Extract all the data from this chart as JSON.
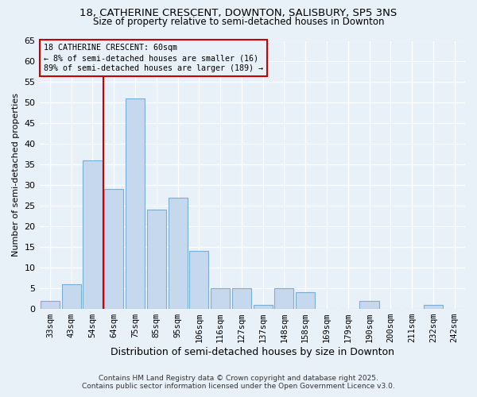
{
  "title1": "18, CATHERINE CRESCENT, DOWNTON, SALISBURY, SP5 3NS",
  "title2": "Size of property relative to semi-detached houses in Downton",
  "xlabel": "Distribution of semi-detached houses by size in Downton",
  "ylabel": "Number of semi-detached properties",
  "footer1": "Contains HM Land Registry data © Crown copyright and database right 2025.",
  "footer2": "Contains public sector information licensed under the Open Government Licence v3.0.",
  "categories": [
    "33sqm",
    "43sqm",
    "54sqm",
    "64sqm",
    "75sqm",
    "85sqm",
    "95sqm",
    "106sqm",
    "116sqm",
    "127sqm",
    "137sqm",
    "148sqm",
    "158sqm",
    "169sqm",
    "179sqm",
    "190sqm",
    "200sqm",
    "211sqm",
    "232sqm",
    "242sqm"
  ],
  "values": [
    2,
    6,
    36,
    29,
    51,
    24,
    27,
    14,
    5,
    5,
    1,
    5,
    4,
    0,
    0,
    2,
    0,
    0,
    1,
    0
  ],
  "bar_color": "#c5d8ed",
  "bar_edge_color": "#7aaed4",
  "subject_line_color": "#cc0000",
  "annotation_box_edge_color": "#cc0000",
  "annotation_line1": "18 CATHERINE CRESCENT: 60sqm",
  "annotation_line2": "← 8% of semi-detached houses are smaller (16)",
  "annotation_line3": "89% of semi-detached houses are larger (189) →",
  "background_color": "#e8f0f8",
  "grid_color": "#ffffff",
  "ylim": [
    0,
    65
  ],
  "yticks": [
    0,
    5,
    10,
    15,
    20,
    25,
    30,
    35,
    40,
    45,
    50,
    55,
    60,
    65
  ]
}
